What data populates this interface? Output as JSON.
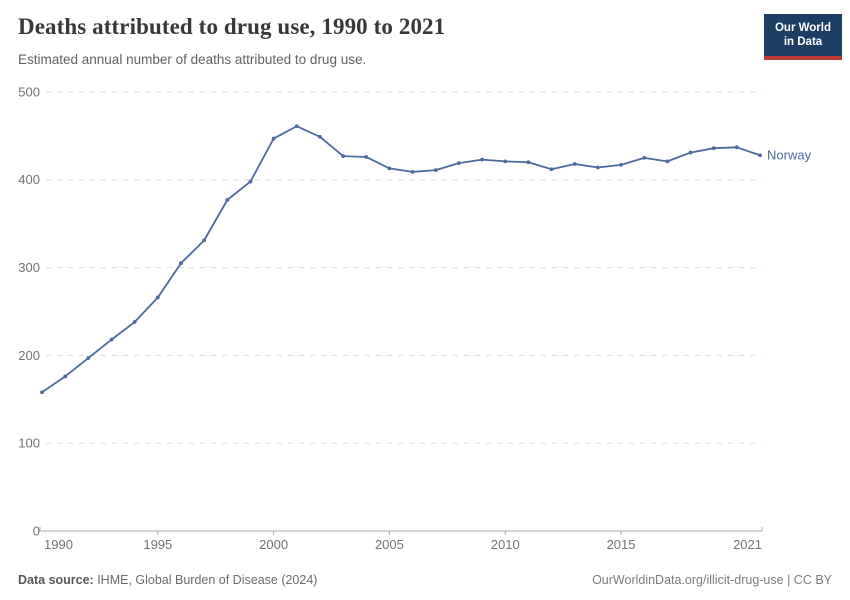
{
  "header": {
    "title": "Deaths attributed to drug use, 1990 to 2021",
    "subtitle": "Estimated annual number of deaths attributed to drug use.",
    "logo": {
      "line1": "Our World",
      "line2": "in Data"
    }
  },
  "chart_data": {
    "type": "line",
    "title": "Deaths attributed to drug use, 1990 to 2021",
    "xlabel": "",
    "ylabel": "",
    "xlim": [
      1990,
      2021
    ],
    "ylim": [
      0,
      500
    ],
    "x_ticks": [
      1990,
      1995,
      2000,
      2005,
      2010,
      2015,
      2021
    ],
    "y_ticks": [
      0,
      100,
      200,
      300,
      400,
      500
    ],
    "grid": "horizontal-dashed",
    "legend_position": "end-of-line-label",
    "series": [
      {
        "name": "Norway",
        "color": "#4c6a9c",
        "x": [
          1990,
          1991,
          1992,
          1993,
          1994,
          1995,
          1996,
          1997,
          1998,
          1999,
          2000,
          2001,
          2002,
          2003,
          2004,
          2005,
          2006,
          2007,
          2008,
          2009,
          2010,
          2011,
          2012,
          2013,
          2014,
          2015,
          2016,
          2017,
          2018,
          2019,
          2020,
          2021
        ],
        "values": [
          158,
          176,
          197,
          218,
          238,
          266,
          305,
          331,
          377,
          398,
          447,
          461,
          449,
          427,
          426,
          413,
          409,
          411,
          419,
          423,
          421,
          420,
          412,
          418,
          414,
          417,
          425,
          421,
          431,
          436,
          437,
          428
        ]
      }
    ]
  },
  "footer": {
    "source_label": "Data source:",
    "source_text": " IHME, Global Burden of Disease (2024)",
    "link_text": "OurWorldinData.org/illicit-drug-use",
    "license_suffix": " | CC BY"
  },
  "colors": {
    "line": "#4c6a9c",
    "grid": "#dddddd",
    "axis": "#a8a8a8",
    "tick_label": "#737373",
    "logo_bg": "#1d3d63",
    "logo_stripe": "#bc3b34"
  }
}
